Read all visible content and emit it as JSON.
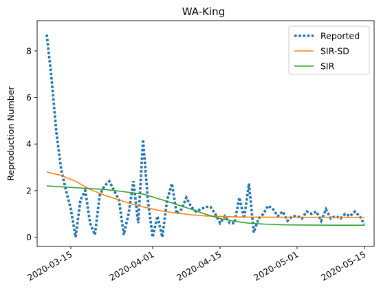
{
  "chart_data": {
    "type": "line",
    "title": "WA-King",
    "xlabel": "",
    "ylabel": "Reproduction Number",
    "x_tick_labels": [
      "2020-03-15",
      "2020-04-01",
      "2020-04-15",
      "2020-05-01",
      "2020-05-15"
    ],
    "x_ticks": [
      "2020-03-15",
      "2020-04-01",
      "2020-04-15",
      "2020-05-01",
      "2020-05-15"
    ],
    "xlim": [
      "2020-03-08",
      "2020-05-17"
    ],
    "ylim": [
      -0.4,
      9.3
    ],
    "y_ticks": [
      0,
      2,
      4,
      6,
      8
    ],
    "grid": false,
    "legend_position": "top-right",
    "colors": {
      "Reported": "#1f77b4",
      "SIR-SD": "#ff7f0e",
      "SIR": "#2ca02c"
    },
    "series": [
      {
        "name": "Reported",
        "style": "dotted",
        "points": [
          [
            "2020-03-10",
            8.7
          ],
          [
            "2020-03-11",
            6.8
          ],
          [
            "2020-03-12",
            4.5
          ],
          [
            "2020-03-13",
            2.9
          ],
          [
            "2020-03-14",
            2.0
          ],
          [
            "2020-03-15",
            1.2
          ],
          [
            "2020-03-16",
            0.0
          ],
          [
            "2020-03-17",
            1.6
          ],
          [
            "2020-03-18",
            2.0
          ],
          [
            "2020-03-19",
            0.6
          ],
          [
            "2020-03-20",
            0.1
          ],
          [
            "2020-03-21",
            1.8
          ],
          [
            "2020-03-22",
            2.2
          ],
          [
            "2020-03-23",
            2.4
          ],
          [
            "2020-03-24",
            2.0
          ],
          [
            "2020-03-25",
            1.6
          ],
          [
            "2020-03-26",
            0.1
          ],
          [
            "2020-03-27",
            1.0
          ],
          [
            "2020-03-28",
            2.4
          ],
          [
            "2020-03-29",
            0.6
          ],
          [
            "2020-03-30",
            4.2
          ],
          [
            "2020-03-31",
            1.6
          ],
          [
            "2020-04-01",
            0.0
          ],
          [
            "2020-04-02",
            0.9
          ],
          [
            "2020-04-03",
            0.0
          ],
          [
            "2020-04-04",
            1.6
          ],
          [
            "2020-04-05",
            2.3
          ],
          [
            "2020-04-06",
            1.0
          ],
          [
            "2020-04-07",
            1.2
          ],
          [
            "2020-04-08",
            1.7
          ],
          [
            "2020-04-09",
            1.3
          ],
          [
            "2020-04-10",
            1.1
          ],
          [
            "2020-04-11",
            1.2
          ],
          [
            "2020-04-12",
            1.3
          ],
          [
            "2020-04-13",
            1.3
          ],
          [
            "2020-04-14",
            1.0
          ],
          [
            "2020-04-15",
            0.6
          ],
          [
            "2020-04-16",
            0.9
          ],
          [
            "2020-04-17",
            0.6
          ],
          [
            "2020-04-18",
            0.6
          ],
          [
            "2020-04-19",
            1.7
          ],
          [
            "2020-04-20",
            0.8
          ],
          [
            "2020-04-21",
            2.3
          ],
          [
            "2020-04-22",
            0.2
          ],
          [
            "2020-04-23",
            0.8
          ],
          [
            "2020-04-24",
            1.0
          ],
          [
            "2020-04-25",
            1.35
          ],
          [
            "2020-04-26",
            1.2
          ],
          [
            "2020-04-27",
            0.9
          ],
          [
            "2020-04-28",
            1.1
          ],
          [
            "2020-04-29",
            0.7
          ],
          [
            "2020-04-30",
            0.9
          ],
          [
            "2020-05-01",
            0.9
          ],
          [
            "2020-05-02",
            0.8
          ],
          [
            "2020-05-03",
            1.1
          ],
          [
            "2020-05-04",
            1.0
          ],
          [
            "2020-05-05",
            1.1
          ],
          [
            "2020-05-06",
            0.7
          ],
          [
            "2020-05-07",
            1.2
          ],
          [
            "2020-05-08",
            0.8
          ],
          [
            "2020-05-09",
            0.9
          ],
          [
            "2020-05-10",
            0.8
          ],
          [
            "2020-05-11",
            1.0
          ],
          [
            "2020-05-12",
            0.9
          ],
          [
            "2020-05-13",
            1.1
          ],
          [
            "2020-05-14",
            0.9
          ],
          [
            "2020-05-15",
            0.55
          ]
        ]
      },
      {
        "name": "SIR-SD",
        "style": "solid",
        "points": [
          [
            "2020-03-10",
            2.8
          ],
          [
            "2020-03-13",
            2.65
          ],
          [
            "2020-03-16",
            2.4
          ],
          [
            "2020-03-19",
            2.05
          ],
          [
            "2020-03-22",
            1.8
          ],
          [
            "2020-03-25",
            1.6
          ],
          [
            "2020-03-28",
            1.4
          ],
          [
            "2020-03-31",
            1.25
          ],
          [
            "2020-04-03",
            1.12
          ],
          [
            "2020-04-06",
            1.03
          ],
          [
            "2020-04-09",
            0.96
          ],
          [
            "2020-04-12",
            0.91
          ],
          [
            "2020-04-15",
            0.89
          ],
          [
            "2020-04-18",
            0.87
          ],
          [
            "2020-04-21",
            0.86
          ],
          [
            "2020-04-24",
            0.86
          ],
          [
            "2020-05-01",
            0.85
          ],
          [
            "2020-05-08",
            0.85
          ],
          [
            "2020-05-15",
            0.85
          ]
        ]
      },
      {
        "name": "SIR",
        "style": "solid",
        "points": [
          [
            "2020-03-10",
            2.2
          ],
          [
            "2020-03-14",
            2.15
          ],
          [
            "2020-03-18",
            2.1
          ],
          [
            "2020-03-22",
            2.05
          ],
          [
            "2020-03-26",
            1.95
          ],
          [
            "2020-03-30",
            1.85
          ],
          [
            "2020-04-03",
            1.6
          ],
          [
            "2020-04-06",
            1.4
          ],
          [
            "2020-04-09",
            1.2
          ],
          [
            "2020-04-12",
            0.98
          ],
          [
            "2020-04-15",
            0.8
          ],
          [
            "2020-04-18",
            0.68
          ],
          [
            "2020-04-21",
            0.6
          ],
          [
            "2020-04-24",
            0.56
          ],
          [
            "2020-04-28",
            0.53
          ],
          [
            "2020-05-03",
            0.52
          ],
          [
            "2020-05-09",
            0.51
          ],
          [
            "2020-05-15",
            0.51
          ]
        ]
      }
    ]
  }
}
